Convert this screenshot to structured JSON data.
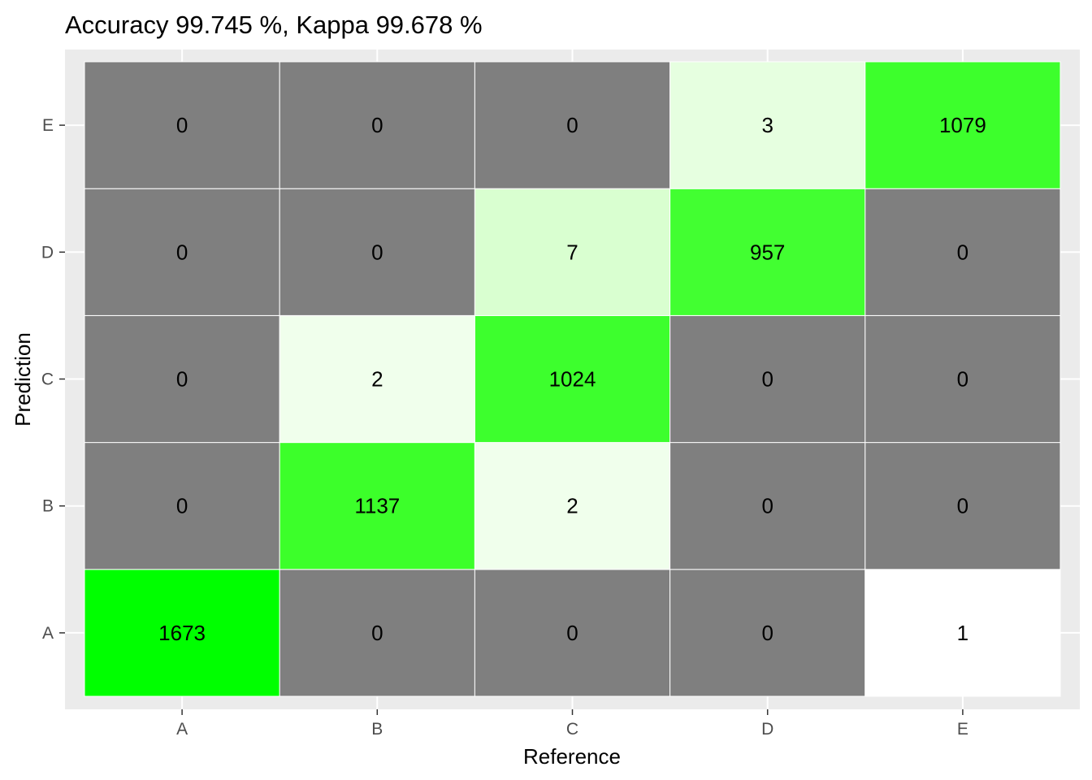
{
  "chart_data": {
    "type": "heatmap",
    "title": "Accuracy 99.745 %, Kappa 99.678 %",
    "xlabel": "Reference",
    "ylabel": "Prediction",
    "x_categories": [
      "A",
      "B",
      "C",
      "D",
      "E"
    ],
    "y_categories": [
      "A",
      "B",
      "C",
      "D",
      "E"
    ],
    "cells": [
      {
        "reference": "A",
        "prediction": "A",
        "value": 1673,
        "color": "#00ff00"
      },
      {
        "reference": "B",
        "prediction": "A",
        "value": 0,
        "color": "#7f7f7f"
      },
      {
        "reference": "C",
        "prediction": "A",
        "value": 0,
        "color": "#7f7f7f"
      },
      {
        "reference": "D",
        "prediction": "A",
        "value": 0,
        "color": "#7f7f7f"
      },
      {
        "reference": "E",
        "prediction": "A",
        "value": 1,
        "color": "#ffffff"
      },
      {
        "reference": "A",
        "prediction": "B",
        "value": 0,
        "color": "#7f7f7f"
      },
      {
        "reference": "B",
        "prediction": "B",
        "value": 1137,
        "color": "#3cff2a"
      },
      {
        "reference": "C",
        "prediction": "B",
        "value": 2,
        "color": "#f0ffec"
      },
      {
        "reference": "D",
        "prediction": "B",
        "value": 0,
        "color": "#7f7f7f"
      },
      {
        "reference": "E",
        "prediction": "B",
        "value": 0,
        "color": "#7f7f7f"
      },
      {
        "reference": "A",
        "prediction": "C",
        "value": 0,
        "color": "#7f7f7f"
      },
      {
        "reference": "B",
        "prediction": "C",
        "value": 2,
        "color": "#f0ffec"
      },
      {
        "reference": "C",
        "prediction": "C",
        "value": 1024,
        "color": "#3dff2d"
      },
      {
        "reference": "D",
        "prediction": "C",
        "value": 0,
        "color": "#7f7f7f"
      },
      {
        "reference": "E",
        "prediction": "C",
        "value": 0,
        "color": "#7f7f7f"
      },
      {
        "reference": "A",
        "prediction": "D",
        "value": 0,
        "color": "#7f7f7f"
      },
      {
        "reference": "B",
        "prediction": "D",
        "value": 0,
        "color": "#7f7f7f"
      },
      {
        "reference": "C",
        "prediction": "D",
        "value": 7,
        "color": "#d9ffd0"
      },
      {
        "reference": "D",
        "prediction": "D",
        "value": 957,
        "color": "#42ff31"
      },
      {
        "reference": "E",
        "prediction": "D",
        "value": 0,
        "color": "#7f7f7f"
      },
      {
        "reference": "A",
        "prediction": "E",
        "value": 0,
        "color": "#7f7f7f"
      },
      {
        "reference": "B",
        "prediction": "E",
        "value": 0,
        "color": "#7f7f7f"
      },
      {
        "reference": "C",
        "prediction": "E",
        "value": 0,
        "color": "#7f7f7f"
      },
      {
        "reference": "D",
        "prediction": "E",
        "value": 3,
        "color": "#e6ffe0"
      },
      {
        "reference": "E",
        "prediction": "E",
        "value": 1079,
        "color": "#3dff2c"
      }
    ],
    "panel_background": "#ebebeb",
    "grid": true,
    "legend": "none"
  }
}
